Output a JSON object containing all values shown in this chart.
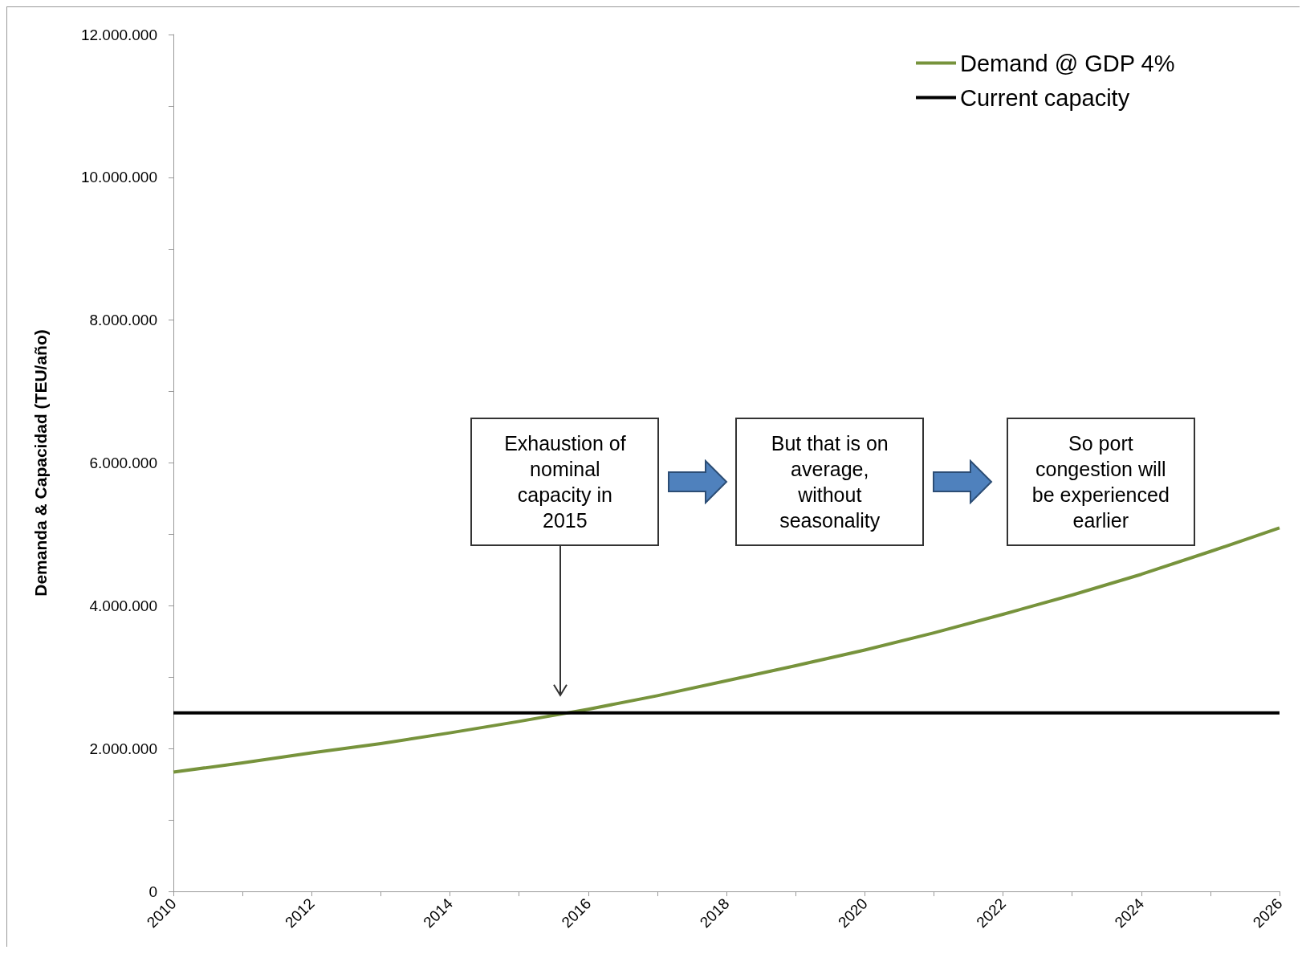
{
  "chart_data": {
    "type": "line",
    "ylabel": "Demanda & Capacidad (TEU/año)",
    "x": [
      2010,
      2011,
      2012,
      2013,
      2014,
      2015,
      2016,
      2017,
      2018,
      2019,
      2020,
      2021,
      2022,
      2023,
      2024,
      2025,
      2026
    ],
    "series": [
      {
        "name": "Demand @ GDP 4%",
        "color": "#77933c",
        "values": [
          1670000,
          1800000,
          1940000,
          2070000,
          2220000,
          2380000,
          2550000,
          2740000,
          2950000,
          3160000,
          3380000,
          3620000,
          3880000,
          4150000,
          4440000,
          4760000,
          5090000
        ]
      },
      {
        "name": "Current capacity",
        "color": "#000000",
        "values": [
          2500000,
          2500000,
          2500000,
          2500000,
          2500000,
          2500000,
          2500000,
          2500000,
          2500000,
          2500000,
          2500000,
          2500000,
          2500000,
          2500000,
          2500000,
          2500000,
          2500000
        ]
      }
    ],
    "xlim": [
      2010,
      2026
    ],
    "xticks": [
      2010,
      {
        "value": 2011,
        "label": null
      },
      2012,
      {
        "value": 2013,
        "label": null
      },
      2014,
      {
        "value": 2015,
        "label": null
      },
      2016,
      {
        "value": 2017,
        "label": null
      },
      2018,
      {
        "value": 2019,
        "label": null
      },
      2020,
      {
        "value": 2021,
        "label": null
      },
      2022,
      {
        "value": 2023,
        "label": null
      },
      2024,
      {
        "value": 2025,
        "label": null
      },
      2026
    ],
    "ylim": [
      0,
      12000000
    ],
    "yticks": [
      {
        "value": 0,
        "label": "0"
      },
      {
        "value": 1000000,
        "label": null
      },
      {
        "value": 2000000,
        "label": "2.000.000"
      },
      {
        "value": 3000000,
        "label": null
      },
      {
        "value": 4000000,
        "label": "4.000.000"
      },
      {
        "value": 5000000,
        "label": null
      },
      {
        "value": 6000000,
        "label": "6.000.000"
      },
      {
        "value": 7000000,
        "label": null
      },
      {
        "value": 8000000,
        "label": "8.000.000"
      },
      {
        "value": 9000000,
        "label": null
      },
      {
        "value": 10000000,
        "label": "10.000.000"
      },
      {
        "value": 11000000,
        "label": null
      },
      {
        "value": 12000000,
        "label": "12.000.000"
      }
    ],
    "annotations": [
      "Exhaustion of nominal capacity in 2015",
      "But that is on average, without seasonality",
      "So port congestion will be experienced earlier"
    ],
    "legend": "top right",
    "grid": false,
    "marker": "none",
    "line_style": "solid"
  }
}
